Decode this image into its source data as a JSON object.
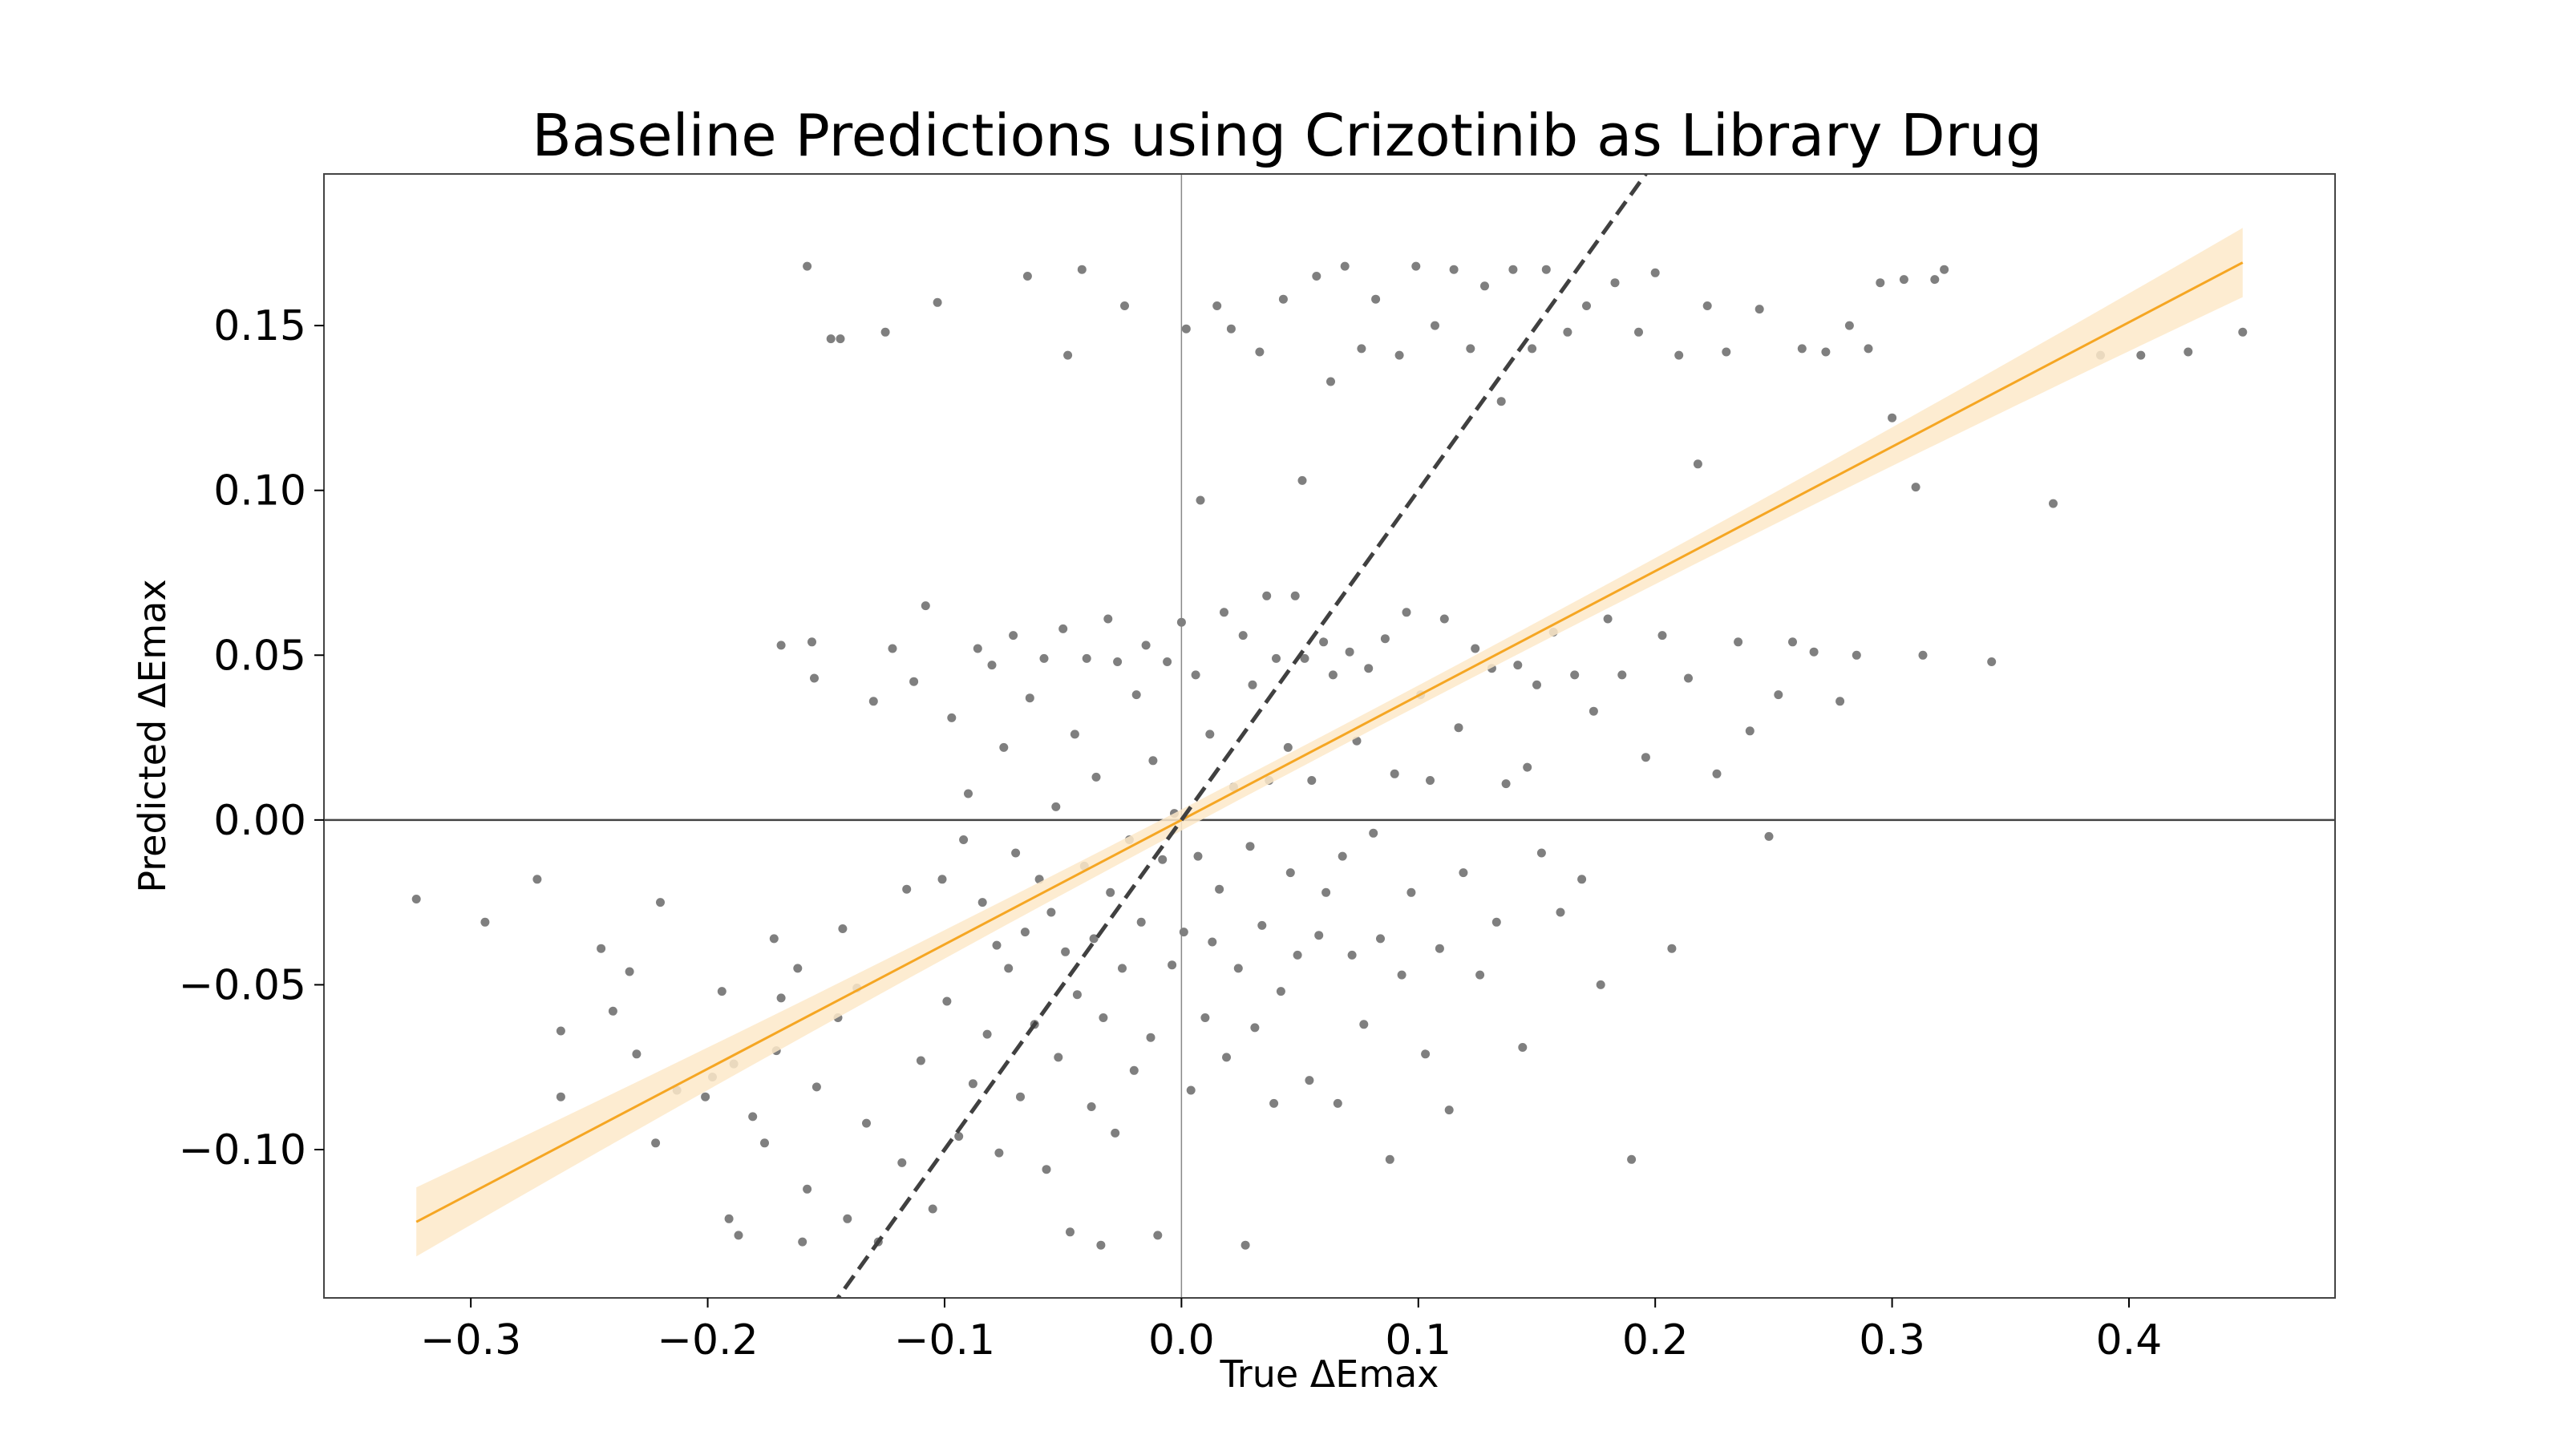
{
  "chart_data": {
    "type": "scatter",
    "title": "Baseline Predictions using Crizotinib as Library Drug",
    "xlabel": "True ΔEmax",
    "ylabel": "Predicted ΔEmax",
    "xlim": [
      -0.362,
      0.487
    ],
    "ylim": [
      -0.145,
      0.196
    ],
    "x_ticks": [
      -0.3,
      -0.2,
      -0.1,
      0.0,
      0.1,
      0.2,
      0.3,
      0.4
    ],
    "x_tick_labels": [
      "−0.3",
      "−0.2",
      "−0.1",
      "0.0",
      "0.1",
      "0.2",
      "0.3",
      "0.4"
    ],
    "y_ticks": [
      -0.1,
      -0.05,
      0.0,
      0.05,
      0.1,
      0.15
    ],
    "y_tick_labels": [
      "−0.10",
      "−0.05",
      "0.00",
      "0.05",
      "0.10",
      "0.15"
    ],
    "grid": false,
    "reference_lines": {
      "x_zero": true,
      "y_zero": true,
      "identity_dashed": {
        "slope": 1.0,
        "intercept": 0.0,
        "color": "#404040"
      }
    },
    "regression": {
      "slope": 0.3775,
      "intercept": 0.0,
      "x_range": [
        -0.323,
        0.448
      ],
      "ci_halfwidth_ends": 0.0105,
      "ci_halfwidth_center": 0.003,
      "line_color": "#f5a623",
      "band_color": "#fde9c9"
    },
    "point_color": "#7f7f7f",
    "series": [
      {
        "values": [
          [
            -0.323,
            -0.024
          ],
          [
            -0.294,
            -0.031
          ],
          [
            -0.272,
            -0.018
          ],
          [
            -0.262,
            -0.064
          ],
          [
            -0.262,
            -0.084
          ],
          [
            -0.245,
            -0.039
          ],
          [
            -0.24,
            -0.058
          ],
          [
            -0.233,
            -0.046
          ],
          [
            -0.23,
            -0.071
          ],
          [
            -0.222,
            -0.098
          ],
          [
            -0.22,
            -0.025
          ],
          [
            -0.213,
            -0.082
          ],
          [
            -0.201,
            -0.084
          ],
          [
            -0.198,
            -0.078
          ],
          [
            -0.194,
            -0.052
          ],
          [
            -0.191,
            -0.121
          ],
          [
            -0.189,
            -0.074
          ],
          [
            -0.187,
            -0.126
          ],
          [
            -0.181,
            -0.09
          ],
          [
            -0.176,
            -0.098
          ],
          [
            -0.172,
            -0.036
          ],
          [
            -0.171,
            -0.07
          ],
          [
            -0.169,
            -0.054
          ],
          [
            -0.169,
            0.053
          ],
          [
            -0.162,
            -0.045
          ],
          [
            -0.16,
            -0.128
          ],
          [
            -0.158,
            -0.112
          ],
          [
            -0.158,
            0.168
          ],
          [
            -0.156,
            0.054
          ],
          [
            -0.155,
            0.043
          ],
          [
            -0.154,
            -0.081
          ],
          [
            -0.148,
            0.146
          ],
          [
            -0.145,
            -0.06
          ],
          [
            -0.144,
            0.146
          ],
          [
            -0.143,
            -0.033
          ],
          [
            -0.141,
            -0.121
          ],
          [
            -0.137,
            -0.051
          ],
          [
            -0.133,
            -0.092
          ],
          [
            -0.13,
            0.036
          ],
          [
            -0.128,
            -0.128
          ],
          [
            -0.125,
            0.148
          ],
          [
            -0.122,
            0.052
          ],
          [
            -0.118,
            -0.104
          ],
          [
            -0.116,
            -0.021
          ],
          [
            -0.113,
            0.042
          ],
          [
            -0.11,
            -0.073
          ],
          [
            -0.108,
            0.065
          ],
          [
            -0.105,
            -0.118
          ],
          [
            -0.103,
            0.157
          ],
          [
            -0.101,
            -0.018
          ],
          [
            -0.099,
            -0.055
          ],
          [
            -0.097,
            0.031
          ],
          [
            -0.094,
            -0.096
          ],
          [
            -0.092,
            -0.006
          ],
          [
            -0.09,
            0.008
          ],
          [
            -0.088,
            -0.08
          ],
          [
            -0.086,
            0.052
          ],
          [
            -0.084,
            -0.025
          ],
          [
            -0.082,
            -0.065
          ],
          [
            -0.08,
            0.047
          ],
          [
            -0.078,
            -0.038
          ],
          [
            -0.077,
            -0.101
          ],
          [
            -0.075,
            0.022
          ],
          [
            -0.073,
            -0.045
          ],
          [
            -0.071,
            0.056
          ],
          [
            -0.07,
            -0.01
          ],
          [
            -0.068,
            -0.084
          ],
          [
            -0.066,
            -0.034
          ],
          [
            -0.065,
            0.165
          ],
          [
            -0.064,
            0.037
          ],
          [
            -0.062,
            -0.062
          ],
          [
            -0.06,
            -0.018
          ],
          [
            -0.058,
            0.049
          ],
          [
            -0.057,
            -0.106
          ],
          [
            -0.055,
            -0.028
          ],
          [
            -0.053,
            0.004
          ],
          [
            -0.052,
            -0.072
          ],
          [
            -0.05,
            0.058
          ],
          [
            -0.049,
            -0.04
          ],
          [
            -0.048,
            0.141
          ],
          [
            -0.047,
            -0.125
          ],
          [
            -0.045,
            0.026
          ],
          [
            -0.044,
            -0.053
          ],
          [
            -0.042,
            0.167
          ],
          [
            -0.041,
            -0.014
          ],
          [
            -0.04,
            0.049
          ],
          [
            -0.038,
            -0.087
          ],
          [
            -0.037,
            -0.036
          ],
          [
            -0.036,
            0.013
          ],
          [
            -0.034,
            -0.129
          ],
          [
            -0.033,
            -0.06
          ],
          [
            -0.031,
            0.061
          ],
          [
            -0.03,
            -0.022
          ],
          [
            -0.028,
            -0.095
          ],
          [
            -0.027,
            0.048
          ],
          [
            -0.025,
            -0.045
          ],
          [
            -0.024,
            0.156
          ],
          [
            -0.022,
            -0.006
          ],
          [
            -0.02,
            -0.076
          ],
          [
            -0.019,
            0.038
          ],
          [
            -0.017,
            -0.031
          ],
          [
            -0.015,
            0.053
          ],
          [
            -0.013,
            -0.066
          ],
          [
            -0.012,
            0.018
          ],
          [
            -0.01,
            -0.126
          ],
          [
            -0.008,
            -0.012
          ],
          [
            -0.006,
            0.048
          ],
          [
            -0.004,
            -0.044
          ],
          [
            -0.003,
            0.002
          ],
          [
            0.0,
            0.06
          ],
          [
            0.001,
            -0.034
          ],
          [
            0.002,
            0.149
          ],
          [
            0.004,
            -0.082
          ],
          [
            0.006,
            0.044
          ],
          [
            0.007,
            -0.011
          ],
          [
            0.008,
            0.097
          ],
          [
            0.01,
            -0.06
          ],
          [
            0.012,
            0.026
          ],
          [
            0.013,
            -0.037
          ],
          [
            0.015,
            0.156
          ],
          [
            0.016,
            -0.021
          ],
          [
            0.018,
            0.063
          ],
          [
            0.019,
            -0.072
          ],
          [
            0.021,
            0.149
          ],
          [
            0.022,
            0.01
          ],
          [
            0.024,
            -0.045
          ],
          [
            0.026,
            0.056
          ],
          [
            0.027,
            -0.129
          ],
          [
            0.029,
            -0.008
          ],
          [
            0.03,
            0.041
          ],
          [
            0.031,
            -0.063
          ],
          [
            0.033,
            0.142
          ],
          [
            0.034,
            -0.032
          ],
          [
            0.036,
            0.068
          ],
          [
            0.037,
            0.012
          ],
          [
            0.039,
            -0.086
          ],
          [
            0.04,
            0.049
          ],
          [
            0.042,
            -0.052
          ],
          [
            0.043,
            0.158
          ],
          [
            0.045,
            0.022
          ],
          [
            0.046,
            -0.016
          ],
          [
            0.048,
            0.068
          ],
          [
            0.049,
            -0.041
          ],
          [
            0.051,
            0.103
          ],
          [
            0.052,
            0.049
          ],
          [
            0.054,
            -0.079
          ],
          [
            0.055,
            0.012
          ],
          [
            0.057,
            0.165
          ],
          [
            0.058,
            -0.035
          ],
          [
            0.06,
            0.054
          ],
          [
            0.061,
            -0.022
          ],
          [
            0.063,
            0.133
          ],
          [
            0.064,
            0.044
          ],
          [
            0.066,
            -0.086
          ],
          [
            0.068,
            -0.011
          ],
          [
            0.069,
            0.168
          ],
          [
            0.071,
            0.051
          ],
          [
            0.072,
            -0.041
          ],
          [
            0.074,
            0.024
          ],
          [
            0.076,
            0.143
          ],
          [
            0.077,
            -0.062
          ],
          [
            0.079,
            0.046
          ],
          [
            0.081,
            -0.004
          ],
          [
            0.082,
            0.158
          ],
          [
            0.084,
            -0.036
          ],
          [
            0.086,
            0.055
          ],
          [
            0.088,
            -0.103
          ],
          [
            0.09,
            0.014
          ],
          [
            0.092,
            0.141
          ],
          [
            0.093,
            -0.047
          ],
          [
            0.095,
            0.063
          ],
          [
            0.097,
            -0.022
          ],
          [
            0.099,
            0.168
          ],
          [
            0.101,
            0.038
          ],
          [
            0.103,
            -0.071
          ],
          [
            0.105,
            0.012
          ],
          [
            0.107,
            0.15
          ],
          [
            0.109,
            -0.039
          ],
          [
            0.111,
            0.061
          ],
          [
            0.113,
            -0.088
          ],
          [
            0.115,
            0.167
          ],
          [
            0.117,
            0.028
          ],
          [
            0.119,
            -0.016
          ],
          [
            0.122,
            0.143
          ],
          [
            0.124,
            0.052
          ],
          [
            0.126,
            -0.047
          ],
          [
            0.128,
            0.162
          ],
          [
            0.131,
            0.046
          ],
          [
            0.133,
            -0.031
          ],
          [
            0.135,
            0.127
          ],
          [
            0.137,
            0.011
          ],
          [
            0.14,
            0.167
          ],
          [
            0.142,
            0.047
          ],
          [
            0.144,
            -0.069
          ],
          [
            0.146,
            0.016
          ],
          [
            0.148,
            0.143
          ],
          [
            0.15,
            0.041
          ],
          [
            0.152,
            -0.01
          ],
          [
            0.154,
            0.167
          ],
          [
            0.157,
            0.057
          ],
          [
            0.16,
            -0.028
          ],
          [
            0.163,
            0.148
          ],
          [
            0.166,
            0.044
          ],
          [
            0.169,
            -0.018
          ],
          [
            0.171,
            0.156
          ],
          [
            0.174,
            0.033
          ],
          [
            0.177,
            -0.05
          ],
          [
            0.18,
            0.061
          ],
          [
            0.183,
            0.163
          ],
          [
            0.186,
            0.044
          ],
          [
            0.19,
            -0.103
          ],
          [
            0.193,
            0.148
          ],
          [
            0.196,
            0.019
          ],
          [
            0.2,
            0.166
          ],
          [
            0.203,
            0.056
          ],
          [
            0.207,
            -0.039
          ],
          [
            0.21,
            0.141
          ],
          [
            0.214,
            0.043
          ],
          [
            0.218,
            0.108
          ],
          [
            0.222,
            0.156
          ],
          [
            0.226,
            0.014
          ],
          [
            0.23,
            0.142
          ],
          [
            0.235,
            0.054
          ],
          [
            0.24,
            0.027
          ],
          [
            0.244,
            0.155
          ],
          [
            0.248,
            -0.005
          ],
          [
            0.252,
            0.038
          ],
          [
            0.258,
            0.054
          ],
          [
            0.262,
            0.143
          ],
          [
            0.267,
            0.051
          ],
          [
            0.272,
            0.142
          ],
          [
            0.278,
            0.036
          ],
          [
            0.282,
            0.15
          ],
          [
            0.285,
            0.05
          ],
          [
            0.29,
            0.143
          ],
          [
            0.295,
            0.163
          ],
          [
            0.3,
            0.122
          ],
          [
            0.305,
            0.164
          ],
          [
            0.31,
            0.101
          ],
          [
            0.313,
            0.05
          ],
          [
            0.318,
            0.164
          ],
          [
            0.322,
            0.167
          ],
          [
            0.342,
            0.048
          ],
          [
            0.368,
            0.096
          ],
          [
            0.388,
            0.141
          ],
          [
            0.405,
            0.141
          ],
          [
            0.425,
            0.142
          ],
          [
            0.448,
            0.148
          ]
        ]
      }
    ]
  }
}
